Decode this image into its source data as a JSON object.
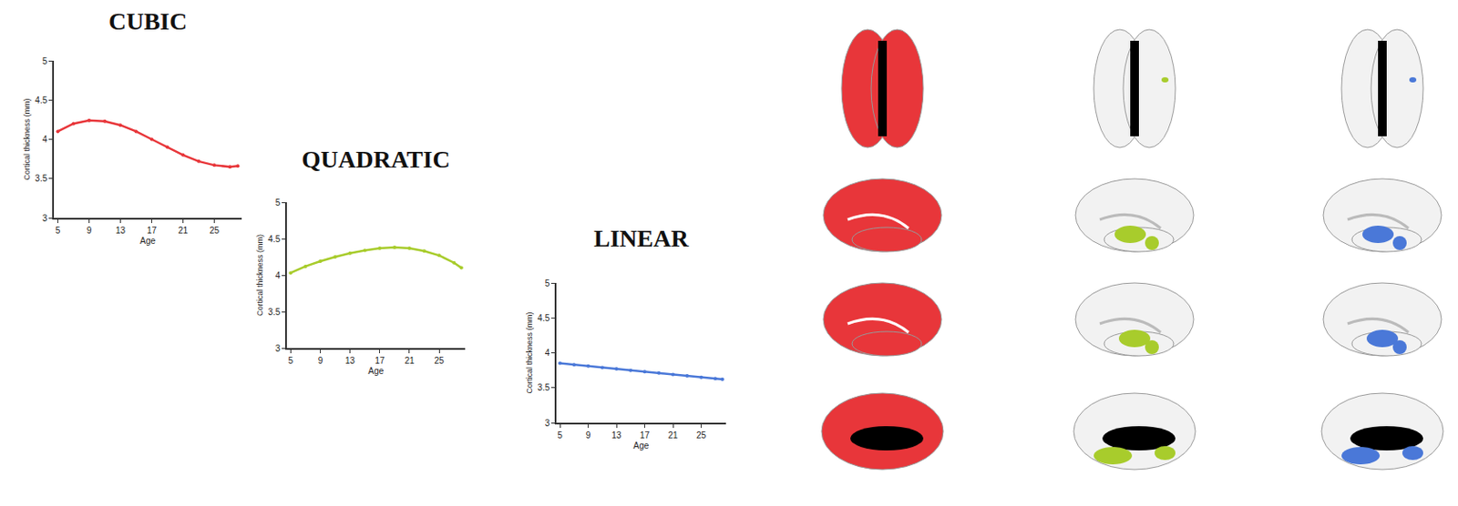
{
  "chart_data": [
    {
      "type": "line",
      "title": "CUBIC",
      "x_label": "Age",
      "y_label": "Cortical thickness (mm)",
      "x": [
        5,
        7,
        9,
        11,
        13,
        15,
        17,
        19,
        21,
        23,
        25,
        27,
        28
      ],
      "series": [
        {
          "name": "Cubic",
          "color": "#e8363a",
          "marker": "circle",
          "line_style": "solid",
          "values": [
            4.1,
            4.2,
            4.24,
            4.23,
            4.18,
            4.1,
            4.0,
            3.9,
            3.8,
            3.72,
            3.67,
            3.65,
            3.66
          ]
        }
      ],
      "xlim": [
        4.5,
        28.5
      ],
      "xticks": [
        5,
        9,
        13,
        17,
        21,
        25
      ],
      "ylim": [
        3,
        5
      ],
      "yticks": [
        3,
        3.5,
        4,
        4.5,
        5
      ],
      "grid": false
    },
    {
      "type": "line",
      "title": "QUADRATIC",
      "x_label": "Age",
      "y_label": "Cortical thickness (mm)",
      "x": [
        5,
        7,
        9,
        11,
        13,
        15,
        17,
        19,
        21,
        23,
        25,
        27,
        28
      ],
      "series": [
        {
          "name": "Quadratic",
          "color": "#a8cc2c",
          "marker": "circle",
          "line_style": "solid",
          "values": [
            4.03,
            4.12,
            4.19,
            4.25,
            4.3,
            4.34,
            4.37,
            4.38,
            4.37,
            4.33,
            4.27,
            4.17,
            4.1
          ]
        }
      ],
      "xlim": [
        4.5,
        28.5
      ],
      "xticks": [
        5,
        9,
        13,
        17,
        21,
        25
      ],
      "ylim": [
        3,
        5
      ],
      "yticks": [
        3,
        3.5,
        4,
        4.5,
        5
      ],
      "grid": false
    },
    {
      "type": "line",
      "title": "LINEAR",
      "x_label": "Age",
      "y_label": "Cortical thickness (mm)",
      "x": [
        5,
        7,
        9,
        11,
        13,
        15,
        17,
        19,
        21,
        23,
        25,
        27,
        28
      ],
      "series": [
        {
          "name": "Linear",
          "color": "#4a78d8",
          "marker": "circle",
          "line_style": "solid",
          "values": [
            3.85,
            3.83,
            3.81,
            3.79,
            3.77,
            3.75,
            3.73,
            3.71,
            3.69,
            3.67,
            3.65,
            3.63,
            3.62
          ]
        }
      ],
      "xlim": [
        4.5,
        28.5
      ],
      "xticks": [
        5,
        9,
        13,
        17,
        21,
        25
      ],
      "ylim": [
        3,
        5
      ],
      "yticks": [
        3,
        3.5,
        4,
        4.5,
        5
      ],
      "grid": false
    }
  ]
}
